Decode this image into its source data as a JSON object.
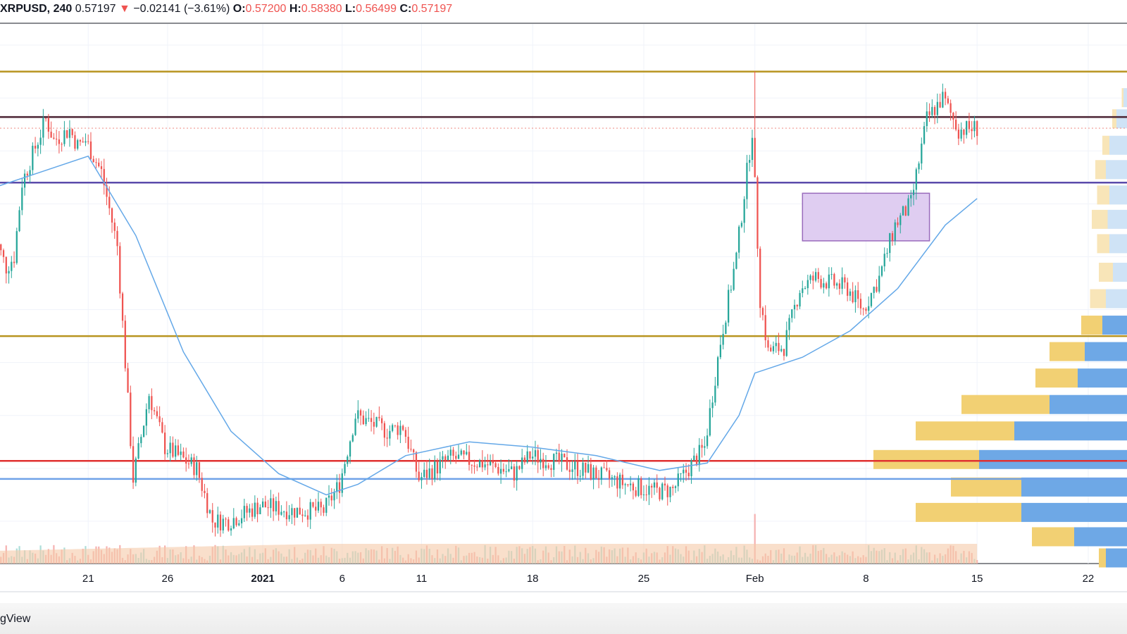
{
  "header": {
    "symbol": "XRPUSD, 240",
    "last": "0.57197",
    "arrow": "▼",
    "change": "−0.02141 (−3.61%)",
    "o_label": "O:",
    "o_value": "0.57200",
    "h_label": "H:",
    "h_value": "0.58380",
    "l_label": "L:",
    "l_value": "0.56499",
    "c_label": "C:",
    "c_value": "0.57197"
  },
  "footer": {
    "brand_fragment": "gView"
  },
  "colors": {
    "up": "#26a69a",
    "down": "#ef5350",
    "ma": "#64a8e8",
    "level_gold": "#b8941f",
    "level_dark": "#4a2332",
    "level_purple": "#5b4bab",
    "level_red": "#e03131",
    "level_blue": "#6fa2e8",
    "zone_fill": "#dcc8f0",
    "zone_stroke": "#8e5bb5",
    "volume_avg": "#f5c9a8",
    "vp_gold": "#f2d073",
    "vp_gold_light": "#f8e5b8",
    "vp_blue": "#6ea8e6",
    "vp_blue_light": "#cfe3f6"
  },
  "chart_data": {
    "type": "candlestick",
    "symbol": "XRPUSD",
    "interval": "240",
    "x_tick_labels": [
      "21",
      "26",
      "2021",
      "6",
      "11",
      "18",
      "25",
      "Feb",
      "8",
      "15",
      "22"
    ],
    "x_ticks": [
      "2020-12-21",
      "2020-12-26",
      "2021-01-01",
      "2021-01-06",
      "2021-01-11",
      "2021-01-18",
      "2021-01-25",
      "2021-02-01",
      "2021-02-08",
      "2021-02-15",
      "2021-02-22"
    ],
    "x_range": [
      "2020-12-15",
      "2021-02-24"
    ],
    "y_range": [
      0.16,
      0.67
    ],
    "price_path": [
      [
        "2020-12-15",
        0.48
      ],
      [
        "2020-12-16",
        0.44
      ],
      [
        "2020-12-16T12",
        0.45
      ],
      [
        "2020-12-17",
        0.52
      ],
      [
        "2020-12-18",
        0.56
      ],
      [
        "2020-12-18T12",
        0.58
      ],
      [
        "2020-12-19",
        0.56
      ],
      [
        "2020-12-20",
        0.57
      ],
      [
        "2020-12-20T12",
        0.555
      ],
      [
        "2020-12-21",
        0.56
      ],
      [
        "2020-12-22",
        0.53
      ],
      [
        "2020-12-23",
        0.46
      ],
      [
        "2020-12-23T12",
        0.35
      ],
      [
        "2020-12-24",
        0.24
      ],
      [
        "2020-12-25",
        0.32
      ],
      [
        "2020-12-26",
        0.27
      ],
      [
        "2020-12-27",
        0.26
      ],
      [
        "2020-12-28",
        0.25
      ],
      [
        "2020-12-29",
        0.2
      ],
      [
        "2020-12-30",
        0.2
      ],
      [
        "2021-01-01",
        0.215
      ],
      [
        "2021-01-03",
        0.21
      ],
      [
        "2021-01-05",
        0.21
      ],
      [
        "2021-01-06",
        0.235
      ],
      [
        "2021-01-07",
        0.3
      ],
      [
        "2021-01-09",
        0.285
      ],
      [
        "2021-01-10",
        0.29
      ],
      [
        "2021-01-11",
        0.24
      ],
      [
        "2021-01-13",
        0.26
      ],
      [
        "2021-01-15",
        0.255
      ],
      [
        "2021-01-17",
        0.245
      ],
      [
        "2021-01-18",
        0.262
      ],
      [
        "2021-01-20",
        0.255
      ],
      [
        "2021-01-22",
        0.245
      ],
      [
        "2021-01-24",
        0.235
      ],
      [
        "2021-01-26",
        0.228
      ],
      [
        "2021-01-27",
        0.23
      ],
      [
        "2021-01-29",
        0.27
      ],
      [
        "2021-01-30",
        0.37
      ],
      [
        "2021-01-31",
        0.45
      ],
      [
        "2021-02-01",
        0.57
      ],
      [
        "2021-02-01T12",
        0.41
      ],
      [
        "2021-02-02",
        0.36
      ],
      [
        "2021-02-03",
        0.365
      ],
      [
        "2021-02-04",
        0.42
      ],
      [
        "2021-02-05",
        0.43
      ],
      [
        "2021-02-07",
        0.42
      ],
      [
        "2021-02-08",
        0.4
      ],
      [
        "2021-02-09",
        0.43
      ],
      [
        "2021-02-10",
        0.48
      ],
      [
        "2021-02-11",
        0.5
      ],
      [
        "2021-02-12",
        0.58
      ],
      [
        "2021-02-13",
        0.6
      ],
      [
        "2021-02-14",
        0.57
      ],
      [
        "2021-02-15",
        0.5715
      ]
    ],
    "moving_average": [
      [
        "2020-12-15",
        0.515
      ],
      [
        "2020-12-18",
        0.53
      ],
      [
        "2020-12-21",
        0.545
      ],
      [
        "2020-12-24",
        0.47
      ],
      [
        "2020-12-27",
        0.36
      ],
      [
        "2020-12-30",
        0.285
      ],
      [
        "2021-01-02",
        0.245
      ],
      [
        "2021-01-05",
        0.225
      ],
      [
        "2021-01-07",
        0.235
      ],
      [
        "2021-01-10",
        0.262
      ],
      [
        "2021-01-14",
        0.275
      ],
      [
        "2021-01-18",
        0.27
      ],
      [
        "2021-01-22",
        0.262
      ],
      [
        "2021-01-26",
        0.248
      ],
      [
        "2021-01-29",
        0.255
      ],
      [
        "2021-01-31",
        0.3
      ],
      [
        "2021-02-01",
        0.34
      ],
      [
        "2021-02-04",
        0.355
      ],
      [
        "2021-02-07",
        0.38
      ],
      [
        "2021-02-10",
        0.42
      ],
      [
        "2021-02-13",
        0.48
      ],
      [
        "2021-02-15",
        0.505
      ]
    ],
    "horizontal_levels": [
      {
        "price": 0.625,
        "color": "level_gold"
      },
      {
        "price": 0.582,
        "color": "level_dark"
      },
      {
        "price": 0.52,
        "color": "level_purple"
      },
      {
        "price": 0.375,
        "color": "level_gold"
      },
      {
        "price": 0.257,
        "color": "level_red"
      },
      {
        "price": 0.24,
        "color": "level_blue"
      }
    ],
    "last_price_line": 0.5715,
    "zone": {
      "x_start": "2021-02-04",
      "x_end": "2021-02-12",
      "price_top": 0.51,
      "price_bottom": 0.465
    },
    "volume_profile": [
      {
        "price": 0.6,
        "gold": 0.005,
        "blue": 0.01
      },
      {
        "price": 0.58,
        "gold": 0.012,
        "blue": 0.03
      },
      {
        "price": 0.555,
        "gold": 0.02,
        "blue": 0.05
      },
      {
        "price": 0.532,
        "gold": 0.03,
        "blue": 0.06
      },
      {
        "price": 0.508,
        "gold": 0.035,
        "blue": 0.05
      },
      {
        "price": 0.485,
        "gold": 0.045,
        "blue": 0.055
      },
      {
        "price": 0.462,
        "gold": 0.035,
        "blue": 0.05
      },
      {
        "price": 0.435,
        "gold": 0.04,
        "blue": 0.04
      },
      {
        "price": 0.41,
        "gold": 0.045,
        "blue": 0.06
      },
      {
        "price": 0.385,
        "gold": 0.06,
        "blue": 0.07
      },
      {
        "price": 0.36,
        "gold": 0.1,
        "blue": 0.12
      },
      {
        "price": 0.335,
        "gold": 0.12,
        "blue": 0.14
      },
      {
        "price": 0.31,
        "gold": 0.25,
        "blue": 0.22
      },
      {
        "price": 0.285,
        "gold": 0.28,
        "blue": 0.32
      },
      {
        "price": 0.258,
        "gold": 0.3,
        "blue": 0.42
      },
      {
        "price": 0.232,
        "gold": 0.2,
        "blue": 0.3
      },
      {
        "price": 0.208,
        "gold": 0.3,
        "blue": 0.3
      },
      {
        "price": 0.185,
        "gold": 0.12,
        "blue": 0.15
      },
      {
        "price": 0.165,
        "gold": 0.02,
        "blue": 0.06
      }
    ],
    "grid": true,
    "legend": "none"
  }
}
